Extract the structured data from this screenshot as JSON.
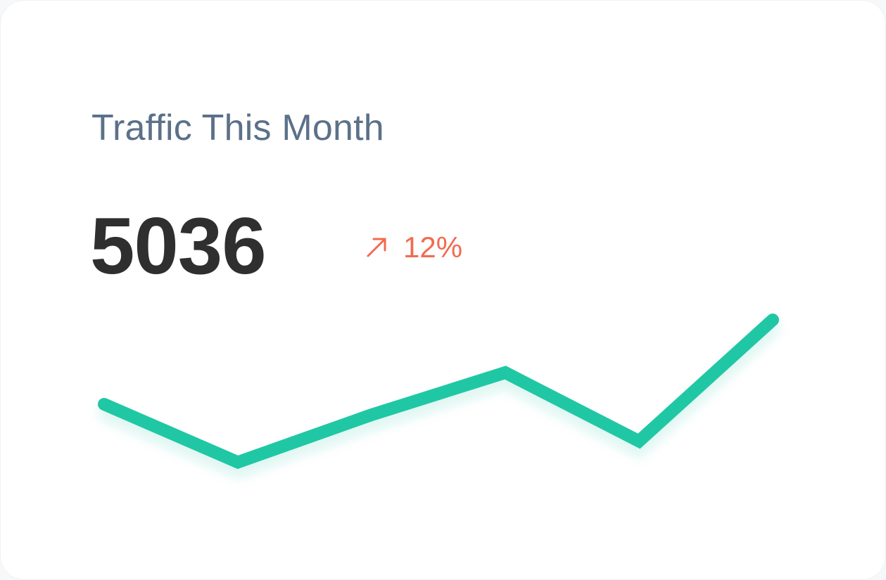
{
  "card": {
    "title": "Traffic This Month",
    "value": "5036",
    "delta": {
      "text": "12%",
      "direction": "up",
      "icon": "arrow-up-right-icon",
      "color": "#f26b4f"
    }
  },
  "chart_data": {
    "type": "line",
    "series": [
      {
        "values": [
          2.0,
          0.9,
          1.8,
          2.6,
          1.3,
          3.6
        ],
        "color": "#20c7a5"
      }
    ],
    "ylim": [
      0,
      4
    ],
    "grid": false
  }
}
